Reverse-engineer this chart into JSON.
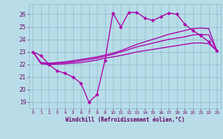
{
  "background_color": "#b8dde8",
  "grid_color": "#8ab8c8",
  "line_color": "#aa00aa",
  "xlabel": "Windchill (Refroidissement éolien,°C)",
  "tick_color": "#660066",
  "xlim": [
    -0.5,
    23.5
  ],
  "ylim": [
    18.5,
    26.8
  ],
  "yticks": [
    19,
    20,
    21,
    22,
    23,
    24,
    25,
    26
  ],
  "xticks": [
    0,
    1,
    2,
    3,
    4,
    5,
    6,
    7,
    8,
    9,
    10,
    11,
    12,
    13,
    14,
    15,
    16,
    17,
    18,
    19,
    20,
    21,
    22,
    23
  ],
  "series": [
    {
      "x": [
        0,
        1,
        2,
        3,
        4,
        5,
        6,
        7,
        8,
        9,
        10,
        11,
        12,
        13,
        14,
        15,
        16,
        17,
        18,
        19,
        20,
        21,
        22,
        23
      ],
      "y": [
        23.0,
        22.7,
        22.0,
        21.5,
        21.3,
        21.0,
        20.5,
        19.0,
        19.6,
        22.3,
        26.1,
        25.0,
        26.15,
        26.15,
        25.7,
        25.5,
        25.8,
        26.1,
        26.0,
        25.2,
        24.7,
        24.3,
        23.8,
        23.1
      ],
      "marker": "D",
      "markersize": 2.5,
      "linewidth": 1.0
    },
    {
      "x": [
        0,
        1,
        2,
        3,
        4,
        5,
        6,
        7,
        8,
        9,
        10,
        11,
        12,
        13,
        14,
        15,
        16,
        17,
        18,
        19,
        20,
        21,
        22,
        23
      ],
      "y": [
        23.0,
        22.15,
        22.1,
        22.15,
        22.2,
        22.3,
        22.4,
        22.5,
        22.6,
        22.75,
        22.9,
        23.1,
        23.35,
        23.6,
        23.8,
        24.0,
        24.2,
        24.4,
        24.55,
        24.7,
        24.85,
        24.9,
        24.85,
        23.1
      ],
      "marker": null,
      "linewidth": 1.0
    },
    {
      "x": [
        0,
        1,
        2,
        3,
        4,
        5,
        6,
        7,
        8,
        9,
        10,
        11,
        12,
        13,
        14,
        15,
        16,
        17,
        18,
        19,
        20,
        21,
        22,
        23
      ],
      "y": [
        23.0,
        22.1,
        22.05,
        22.1,
        22.15,
        22.2,
        22.3,
        22.4,
        22.5,
        22.65,
        22.8,
        23.0,
        23.2,
        23.4,
        23.55,
        23.7,
        23.85,
        24.0,
        24.1,
        24.2,
        24.35,
        24.4,
        24.35,
        23.1
      ],
      "marker": null,
      "linewidth": 1.0
    },
    {
      "x": [
        0,
        1,
        2,
        3,
        4,
        5,
        6,
        7,
        8,
        9,
        10,
        11,
        12,
        13,
        14,
        15,
        16,
        17,
        18,
        19,
        20,
        21,
        22,
        23
      ],
      "y": [
        23.0,
        22.05,
        22.0,
        22.02,
        22.05,
        22.1,
        22.15,
        22.25,
        22.35,
        22.5,
        22.6,
        22.72,
        22.85,
        23.0,
        23.1,
        23.2,
        23.3,
        23.4,
        23.5,
        23.6,
        23.7,
        23.72,
        23.65,
        23.1
      ],
      "marker": null,
      "linewidth": 1.0
    }
  ]
}
